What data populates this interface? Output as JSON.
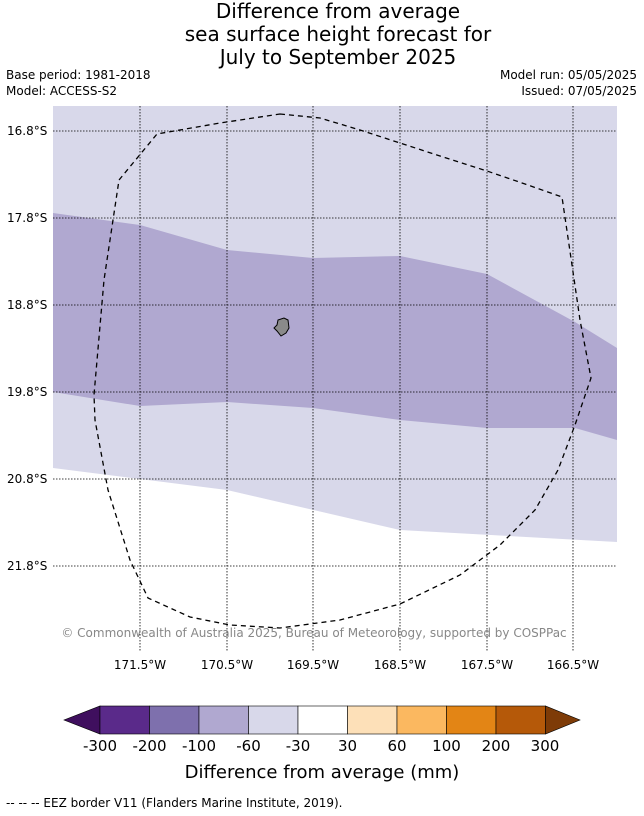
{
  "header": {
    "title_line1": "Difference from average",
    "title_line2": "sea surface height forecast for",
    "title_line3": "July to September 2025",
    "base_period": "Base period: 1981-2018",
    "model": "Model: ACCESS-S2",
    "model_run": "Model run: 05/05/2025",
    "issued": "Issued: 07/05/2025"
  },
  "map": {
    "lat_labels": [
      "16.8°S",
      "17.8°S",
      "18.8°S",
      "19.8°S",
      "20.8°S",
      "21.8°S"
    ],
    "lon_labels": [
      "171.5°W",
      "170.5°W",
      "169.5°W",
      "168.5°W",
      "167.5°W",
      "166.5°W"
    ],
    "copyright": "© Commonwealth of Australia 2025, Bureau of Meteorology, supported by COSPPac",
    "land_color": "#8a8a8a"
  },
  "colorbar": {
    "title": "Difference from average (mm)",
    "tick_labels": [
      "-300",
      "-200",
      "-100",
      "-60",
      "-30",
      "30",
      "60",
      "100",
      "200",
      "300"
    ],
    "colors": [
      "#3f0f5e",
      "#5a2a8a",
      "#7e70ad",
      "#b0a8d0",
      "#d8d8ea",
      "#ffffff",
      "#fde0b8",
      "#fbb860",
      "#e38515",
      "#b55909",
      "#7e3b07"
    ]
  },
  "footer": {
    "legend_text": "--  --  -- EEZ border V11 (Flanders Marine Institute, 2019)."
  }
}
